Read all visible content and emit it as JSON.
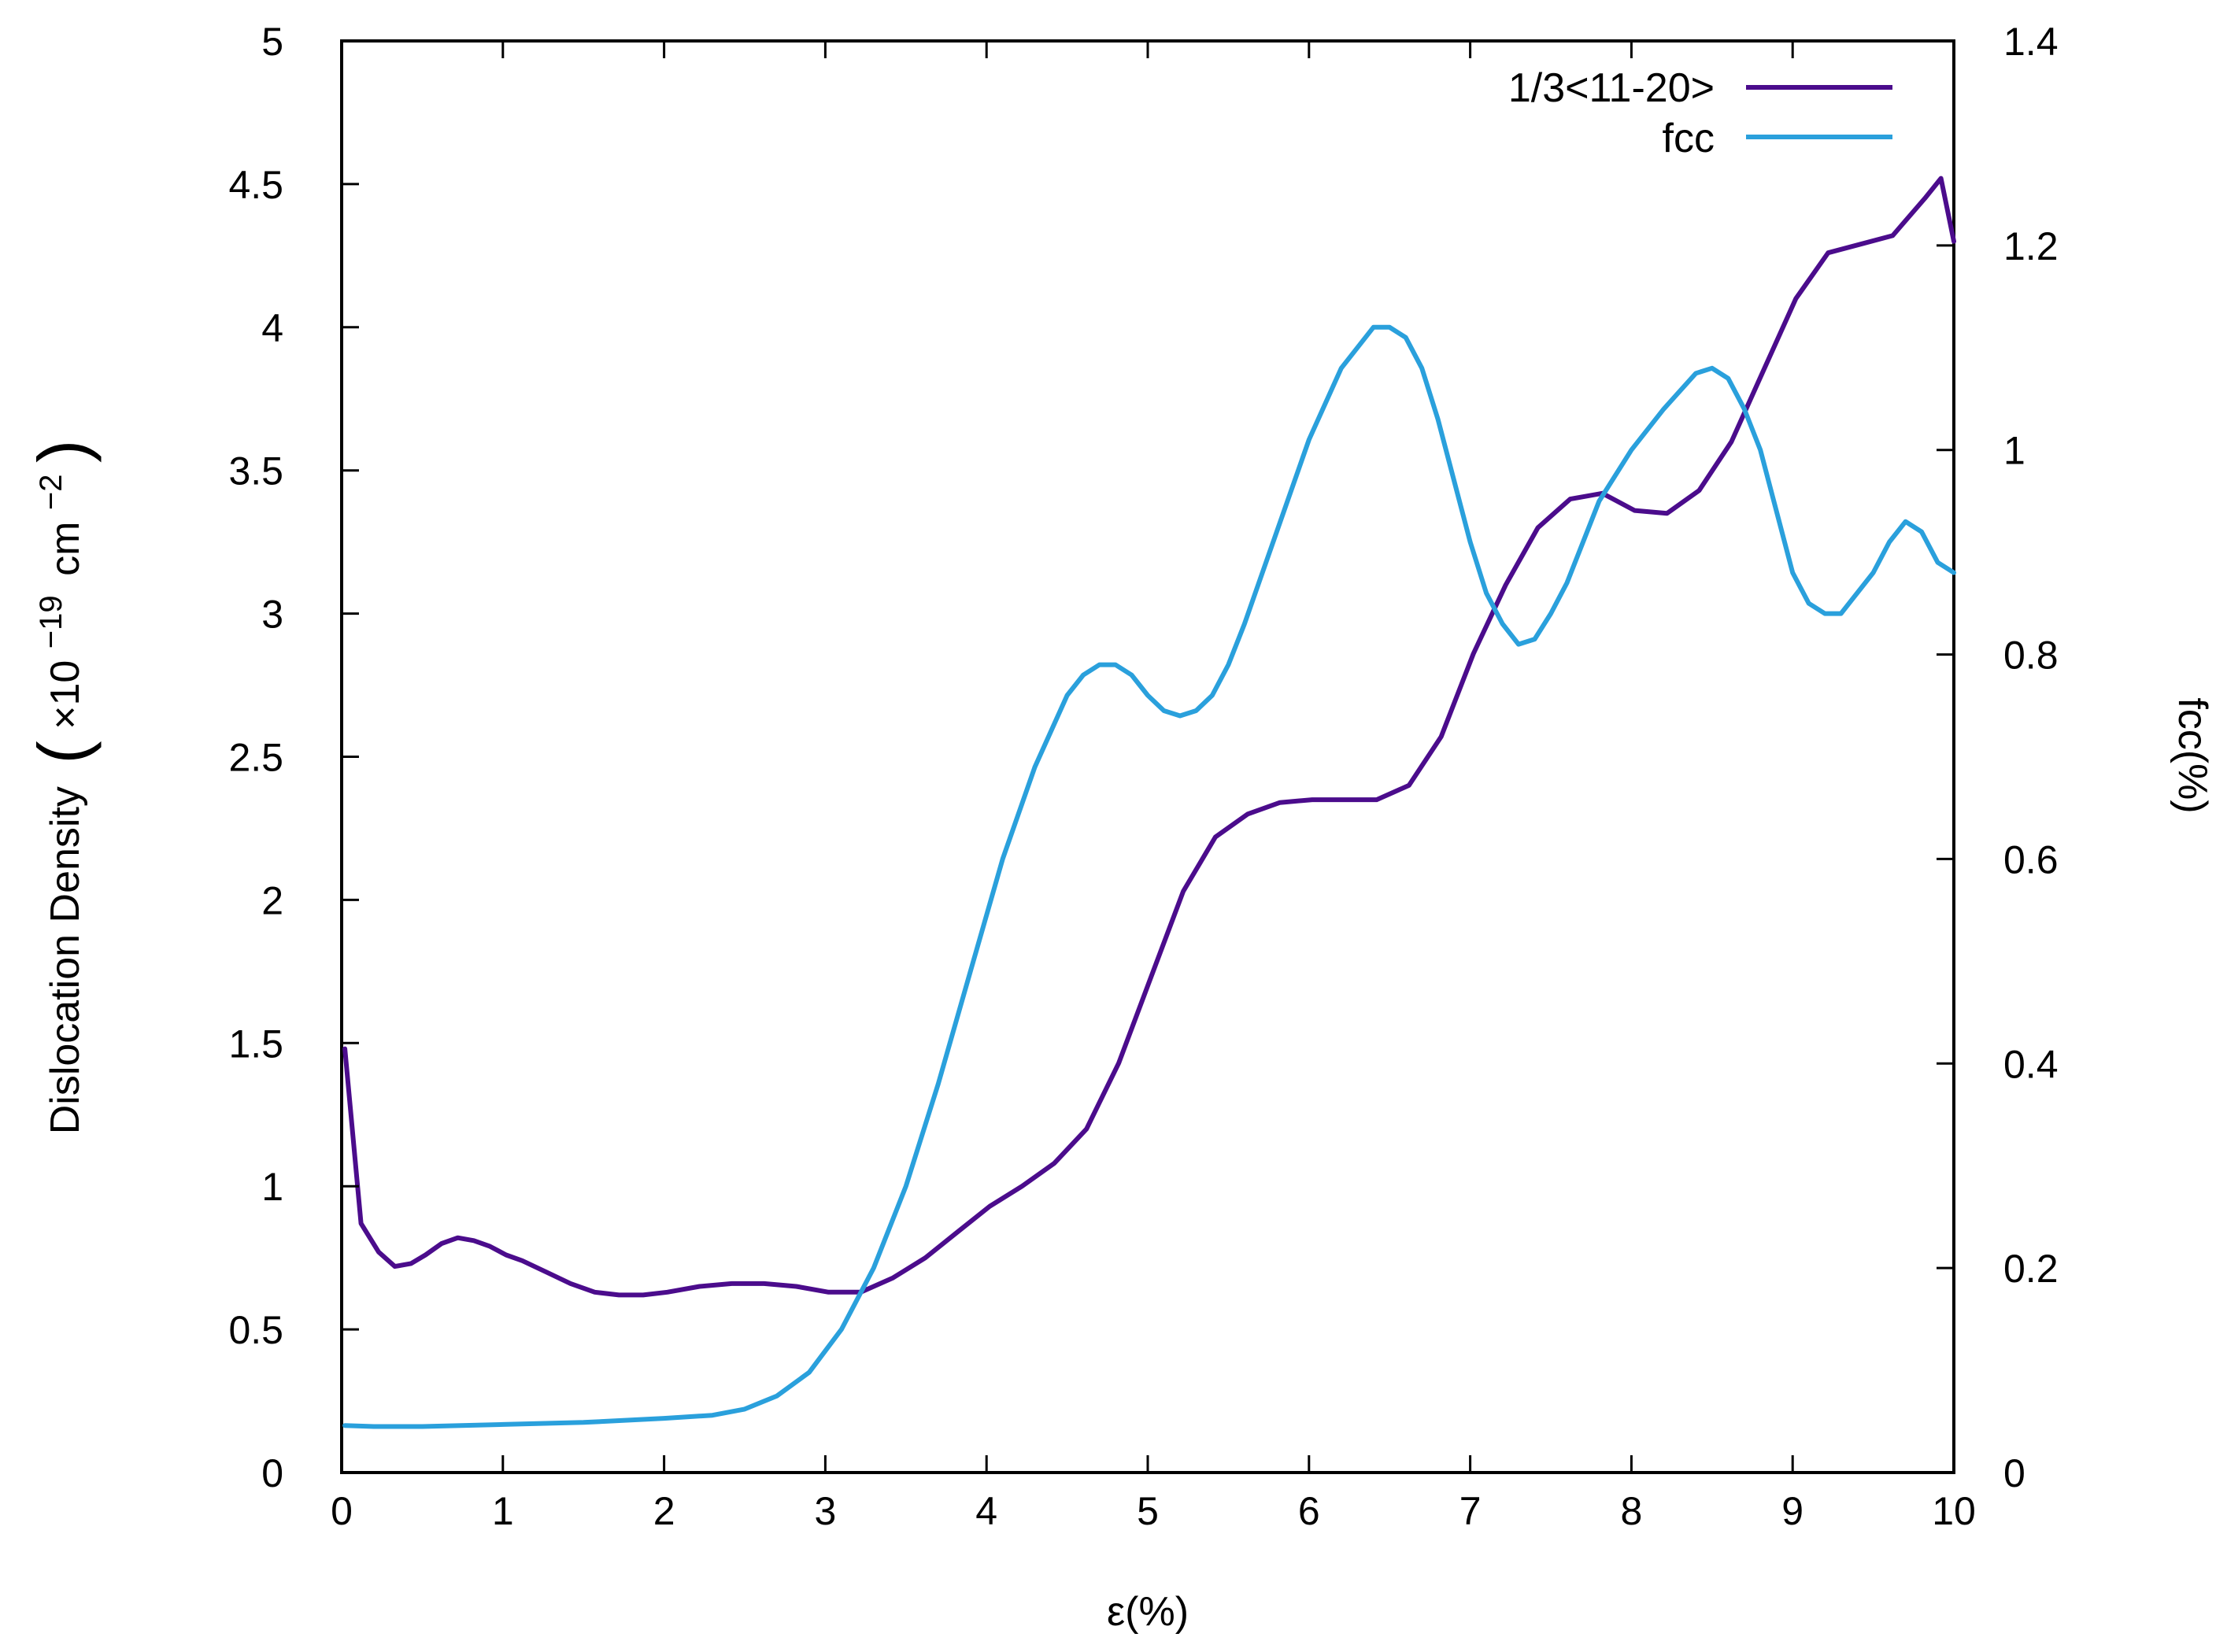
{
  "chart_data": {
    "type": "line",
    "xlabel": "ε(%)",
    "ylabel": "Dislocation Density",
    "ylabel_units": {
      "lparen": "(",
      "prefix": "×10",
      "exp1": "−19",
      "unit": "cm",
      "exp2": "−2",
      "rparen": ")"
    },
    "y2label": "fcc(%)",
    "xlim": [
      0,
      10
    ],
    "ylim": [
      0,
      5
    ],
    "y2lim": [
      0,
      1.4
    ],
    "xticks": [
      "0",
      "1",
      "2",
      "3",
      "4",
      "5",
      "6",
      "7",
      "8",
      "9",
      "10"
    ],
    "yticks": [
      "0",
      "0.5",
      "1",
      "1.5",
      "2",
      "2.5",
      "3",
      "3.5",
      "4",
      "4.5",
      "5"
    ],
    "y2ticks": [
      "0",
      "0.2",
      "0.4",
      "0.6",
      "0.8",
      "1",
      "1.2",
      "1.4"
    ],
    "grid": false,
    "legend_position": "top-right",
    "series": [
      {
        "name": "1/3<11-20>",
        "color": "#4b0c8c",
        "axis": "left",
        "x": [
          0.02,
          0.12,
          0.23,
          0.33,
          0.43,
          0.52,
          0.62,
          0.72,
          0.82,
          0.92,
          1.02,
          1.12,
          1.27,
          1.42,
          1.57,
          1.72,
          1.87,
          2.02,
          2.22,
          2.42,
          2.62,
          2.82,
          3.02,
          3.22,
          3.42,
          3.62,
          3.82,
          4.02,
          4.22,
          4.42,
          4.62,
          4.82,
          5.02,
          5.22,
          5.42,
          5.62,
          5.82,
          6.02,
          6.22,
          6.42,
          6.62,
          6.82,
          7.02,
          7.22,
          7.42,
          7.62,
          7.82,
          8.02,
          8.22,
          8.42,
          8.62,
          8.82,
          9.02,
          9.22,
          9.42,
          9.62,
          9.82,
          9.92,
          10.0
        ],
        "y": [
          1.48,
          0.87,
          0.77,
          0.72,
          0.73,
          0.76,
          0.8,
          0.82,
          0.81,
          0.79,
          0.76,
          0.74,
          0.7,
          0.66,
          0.63,
          0.62,
          0.62,
          0.63,
          0.65,
          0.66,
          0.66,
          0.65,
          0.63,
          0.63,
          0.68,
          0.75,
          0.84,
          0.93,
          1.0,
          1.08,
          1.2,
          1.43,
          1.73,
          2.03,
          2.22,
          2.3,
          2.34,
          2.35,
          2.35,
          2.35,
          2.4,
          2.57,
          2.86,
          3.1,
          3.3,
          3.4,
          3.42,
          3.36,
          3.35,
          3.43,
          3.6,
          3.85,
          4.1,
          4.26,
          4.29,
          4.32,
          4.45,
          4.52,
          4.3
        ]
      },
      {
        "name": "fcc",
        "color": "#2aa0dc",
        "axis": "right",
        "x": [
          0.02,
          0.2,
          0.5,
          1.0,
          1.5,
          2.0,
          2.3,
          2.5,
          2.7,
          2.9,
          3.1,
          3.3,
          3.5,
          3.7,
          3.9,
          4.1,
          4.3,
          4.5,
          4.6,
          4.7,
          4.8,
          4.9,
          5.0,
          5.1,
          5.2,
          5.3,
          5.4,
          5.5,
          5.6,
          5.8,
          6.0,
          6.2,
          6.4,
          6.5,
          6.6,
          6.7,
          6.8,
          6.9,
          7.0,
          7.1,
          7.2,
          7.3,
          7.4,
          7.5,
          7.6,
          7.7,
          7.8,
          8.0,
          8.2,
          8.4,
          8.5,
          8.6,
          8.7,
          8.8,
          8.9,
          9.0,
          9.1,
          9.2,
          9.3,
          9.4,
          9.5,
          9.6,
          9.7,
          9.8,
          9.9,
          10.0
        ],
        "y": [
          0.046,
          0.045,
          0.045,
          0.047,
          0.049,
          0.053,
          0.056,
          0.062,
          0.075,
          0.098,
          0.14,
          0.2,
          0.28,
          0.38,
          0.49,
          0.6,
          0.69,
          0.76,
          0.78,
          0.79,
          0.79,
          0.78,
          0.76,
          0.745,
          0.74,
          0.745,
          0.76,
          0.79,
          0.83,
          0.92,
          1.01,
          1.08,
          1.12,
          1.12,
          1.11,
          1.08,
          1.03,
          0.97,
          0.91,
          0.86,
          0.83,
          0.81,
          0.815,
          0.84,
          0.87,
          0.91,
          0.95,
          1.0,
          1.04,
          1.075,
          1.08,
          1.07,
          1.04,
          1.0,
          0.94,
          0.88,
          0.85,
          0.84,
          0.84,
          0.86,
          0.88,
          0.91,
          0.93,
          0.92,
          0.89,
          0.88
        ]
      }
    ]
  }
}
